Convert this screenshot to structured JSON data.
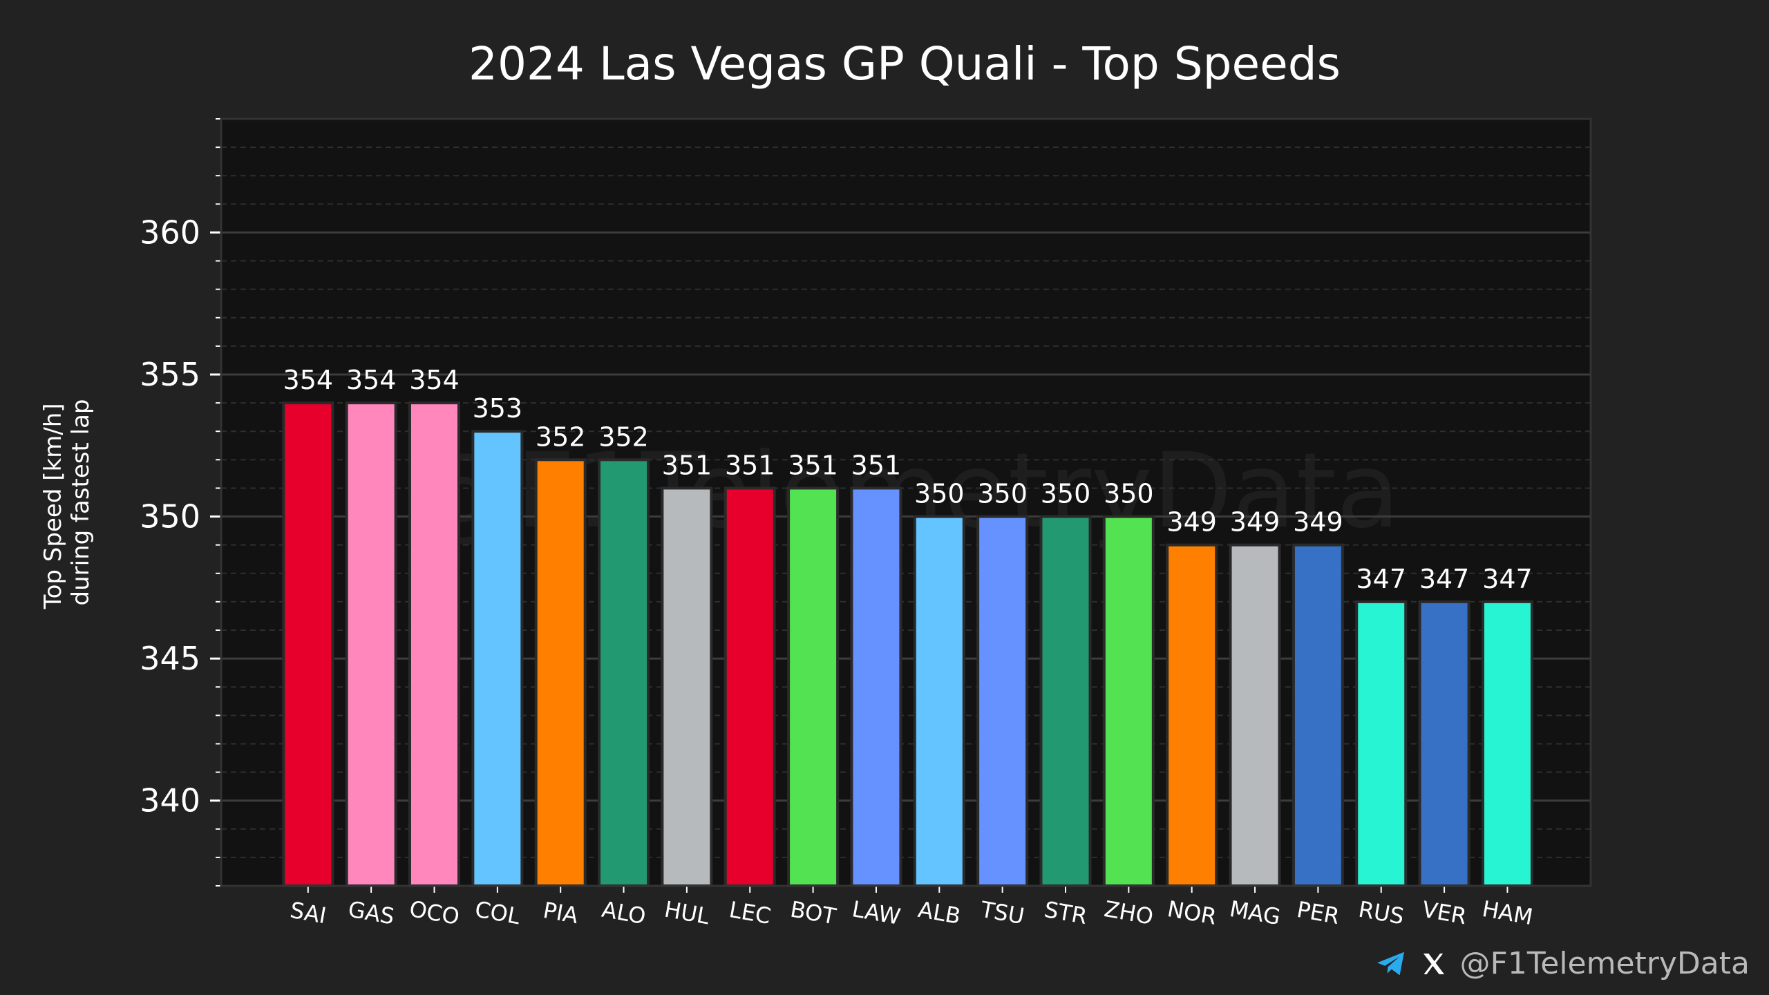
{
  "chart_data": {
    "type": "bar",
    "title": "2024 Las Vegas GP Quali - Top Speeds",
    "ylabel_lines": [
      "Top Speed [km/h]",
      "during fastest lap"
    ],
    "xlabel": "",
    "ylim": [
      337,
      364
    ],
    "yticks": [
      340,
      345,
      350,
      355,
      360
    ],
    "minor_tick_step": 1,
    "grid": "on",
    "categories": [
      "SAI",
      "GAS",
      "OCO",
      "COL",
      "PIA",
      "ALO",
      "HUL",
      "LEC",
      "BOT",
      "LAW",
      "ALB",
      "TSU",
      "STR",
      "ZHO",
      "NOR",
      "MAG",
      "PER",
      "RUS",
      "VER",
      "HAM"
    ],
    "values": [
      354,
      354,
      354,
      353,
      352,
      352,
      351,
      351,
      351,
      351,
      350,
      350,
      350,
      350,
      349,
      349,
      349,
      347,
      347,
      347
    ],
    "colors": [
      "#E8002D",
      "#FF87BC",
      "#FF87BC",
      "#64C4FF",
      "#FF8000",
      "#229971",
      "#B6BABD",
      "#E8002D",
      "#52E252",
      "#6692FF",
      "#64C4FF",
      "#6692FF",
      "#229971",
      "#52E252",
      "#FF8000",
      "#B6BABD",
      "#3671C6",
      "#27F4D2",
      "#3671C6",
      "#27F4D2"
    ],
    "watermark": "@F1TelemetryData"
  },
  "footer": {
    "handle": "@F1TelemetryData",
    "icons": [
      "telegram-icon",
      "x-icon"
    ]
  },
  "theme": {
    "background": "#222222",
    "plot_background": "#121212",
    "text": "#ffffff",
    "grid_major": "#3a3a3a",
    "grid_minor": "#2c2c2c"
  }
}
